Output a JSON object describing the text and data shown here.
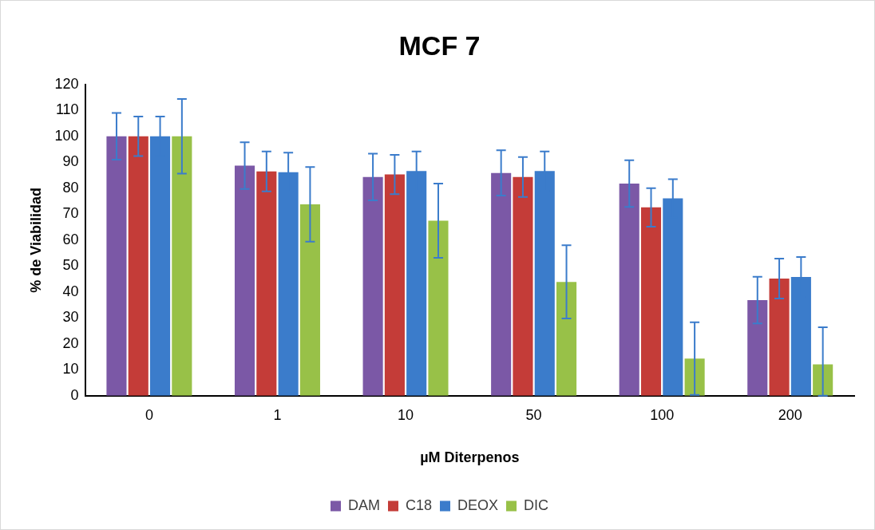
{
  "chart_data": {
    "type": "bar",
    "title": "MCF 7",
    "xlabel": "µM Diterpenos",
    "ylabel": "% de Viabilidad",
    "categories": [
      "0",
      "1",
      "10",
      "50",
      "100",
      "200"
    ],
    "series": [
      {
        "name": "DAM",
        "color": "#7b58a6",
        "values": [
          100,
          88.7,
          84.3,
          85.9,
          81.8,
          36.9
        ],
        "errors": [
          9,
          9,
          9,
          8.7,
          9,
          9
        ]
      },
      {
        "name": "C18",
        "color": "#c43c38",
        "values": [
          100,
          86.5,
          85.3,
          84.3,
          72.6,
          45.2
        ],
        "errors": [
          7.6,
          7.7,
          7.6,
          7.7,
          7.4,
          7.7
        ]
      },
      {
        "name": "DEOX",
        "color": "#3b7ccb",
        "values": [
          100,
          86.2,
          86.6,
          86.6,
          76.1,
          45.8
        ],
        "errors": [
          7.6,
          7.5,
          7.6,
          7.6,
          7.4,
          7.7
        ]
      },
      {
        "name": "DIC",
        "color": "#98c148",
        "values": [
          100,
          73.8,
          67.5,
          43.9,
          14.3,
          12.1
        ],
        "errors": [
          14.4,
          14.4,
          14.3,
          14.1,
          14,
          [
            0,
            26.4
          ]
        ]
      }
    ],
    "ylim": [
      0,
      120
    ],
    "yticks": [
      0,
      10,
      20,
      30,
      40,
      50,
      60,
      70,
      80,
      90,
      100,
      110,
      120
    ],
    "grid": false,
    "legend": "bottom"
  }
}
